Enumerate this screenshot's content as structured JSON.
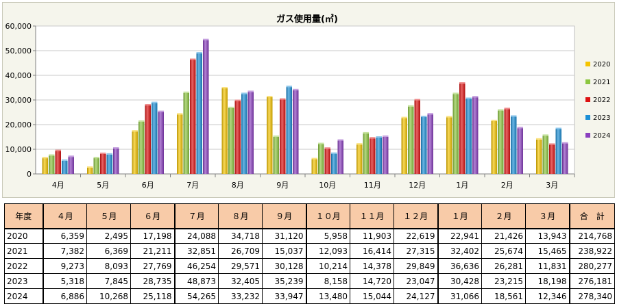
{
  "chart_data": {
    "type": "bar",
    "title": "ガス使用量(㎥)",
    "categories": [
      "4月",
      "5月",
      "6月",
      "7月",
      "8月",
      "9月",
      "10月",
      "11月",
      "12月",
      "1月",
      "2月",
      "3月"
    ],
    "ylim": [
      0,
      60000
    ],
    "yticks": [
      "0",
      "10,000",
      "20,000",
      "30,000",
      "40,000",
      "50,000",
      "60,000"
    ],
    "grid": true,
    "legend_position": "right",
    "series": [
      {
        "name": "2020",
        "color": "#f5c400",
        "values": [
          6359,
          2495,
          17198,
          24088,
          34718,
          31120,
          5958,
          11903,
          22619,
          22941,
          21426,
          13943
        ]
      },
      {
        "name": "2021",
        "color": "#8cc63f",
        "values": [
          7382,
          6369,
          21211,
          32851,
          26709,
          15037,
          12093,
          16414,
          27315,
          32402,
          25674,
          15465
        ]
      },
      {
        "name": "2022",
        "color": "#dd1111",
        "values": [
          9273,
          8093,
          27769,
          46254,
          29571,
          30128,
          10214,
          14378,
          29849,
          36636,
          26281,
          11831
        ]
      },
      {
        "name": "2023",
        "color": "#1b8fd6",
        "values": [
          5318,
          7845,
          28735,
          48873,
          32405,
          35239,
          8158,
          14720,
          23047,
          30428,
          23215,
          18198
        ]
      },
      {
        "name": "2024",
        "color": "#8a3fbf",
        "values": [
          6886,
          10268,
          25118,
          54265,
          33232,
          33947,
          13480,
          15044,
          24127,
          31066,
          18561,
          12346
        ]
      }
    ]
  },
  "table": {
    "headers": [
      "年度",
      "４月",
      "５月",
      "６月",
      "７月",
      "８月",
      "９月",
      "１０月",
      "１１月",
      "１２月",
      "１月",
      "２月",
      "３月",
      "合　計"
    ],
    "rows": [
      [
        "2020",
        "6,359",
        "2,495",
        "17,198",
        "24,088",
        "34,718",
        "31,120",
        "5,958",
        "11,903",
        "22,619",
        "22,941",
        "21,426",
        "13,943",
        "214,768"
      ],
      [
        "2021",
        "7,382",
        "6,369",
        "21,211",
        "32,851",
        "26,709",
        "15,037",
        "12,093",
        "16,414",
        "27,315",
        "32,402",
        "25,674",
        "15,465",
        "238,922"
      ],
      [
        "2022",
        "9,273",
        "8,093",
        "27,769",
        "46,254",
        "29,571",
        "30,128",
        "10,214",
        "14,378",
        "29,849",
        "36,636",
        "26,281",
        "11,831",
        "280,277"
      ],
      [
        "2023",
        "5,318",
        "7,845",
        "28,735",
        "48,873",
        "32,405",
        "35,239",
        "8,158",
        "14,720",
        "23,047",
        "30,428",
        "23,215",
        "18,198",
        "276,181"
      ],
      [
        "2024",
        "6,886",
        "10,268",
        "25,118",
        "54,265",
        "33,232",
        "33,947",
        "13,480",
        "15,044",
        "24,127",
        "31,066",
        "18,561",
        "12,346",
        "278,340"
      ]
    ]
  }
}
